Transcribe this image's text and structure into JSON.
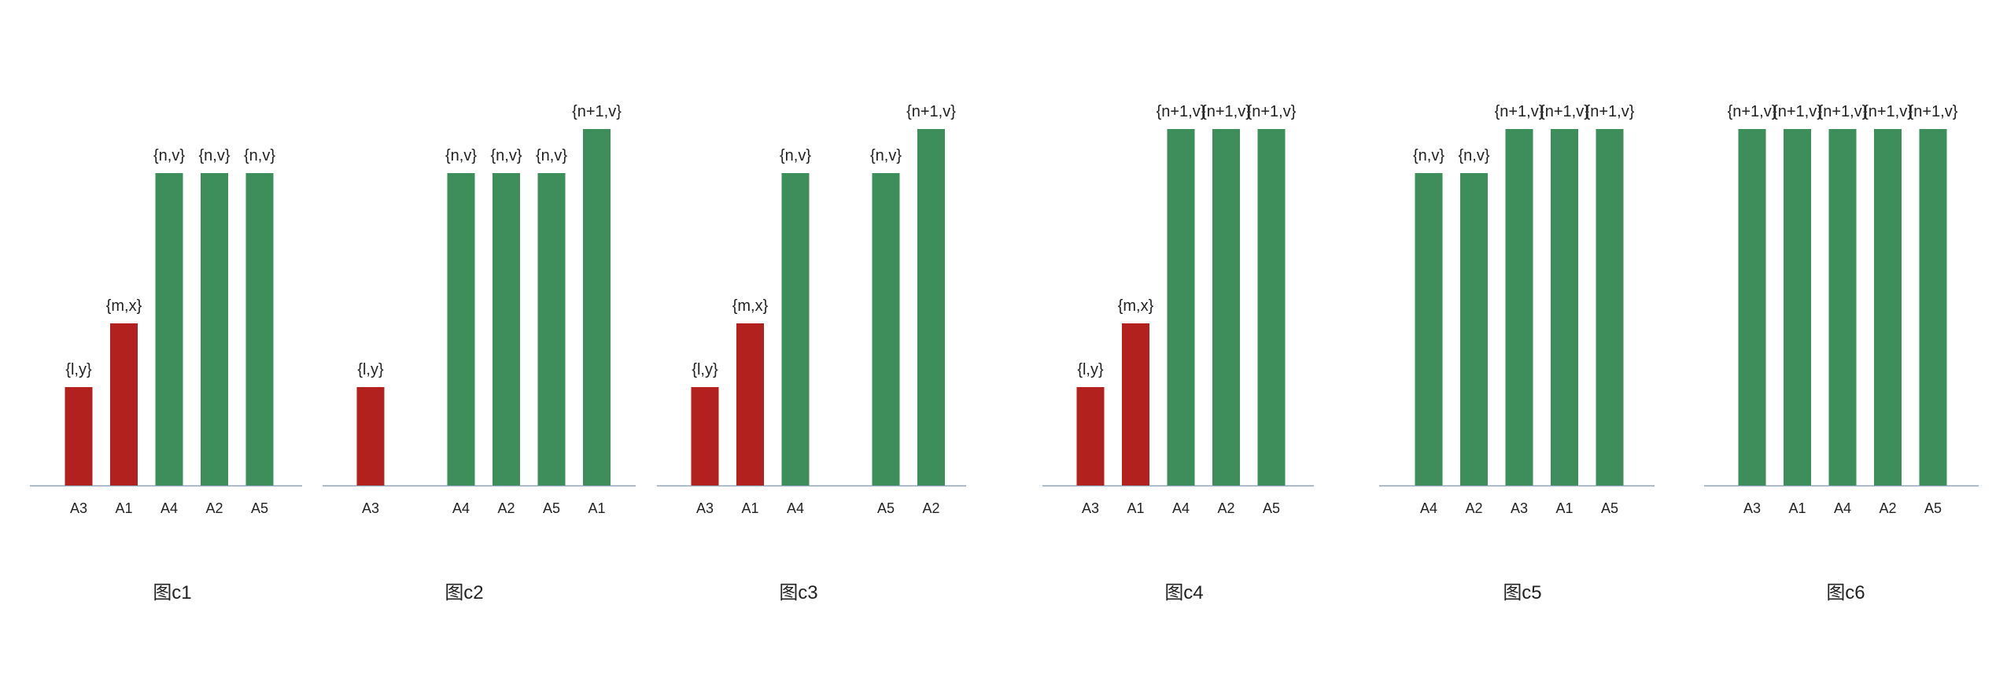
{
  "colors": {
    "red": "#B3211E",
    "green": "#3E8E5B",
    "axis": "#8EA3B5"
  },
  "panels": [
    {
      "caption": "图c1",
      "bars": [
        {
          "cat": "A3",
          "label": "{l,y}",
          "level": "l",
          "color": "red"
        },
        {
          "cat": "A1",
          "label": "{m,x}",
          "level": "m",
          "color": "red"
        },
        {
          "cat": "A4",
          "label": "{n,v}",
          "level": "n",
          "color": "green"
        },
        {
          "cat": "A2",
          "label": "{n,v}",
          "level": "n",
          "color": "green"
        },
        {
          "cat": "A5",
          "label": "{n,v}",
          "level": "n",
          "color": "green"
        }
      ]
    },
    {
      "caption": "图c2",
      "bars": [
        {
          "cat": "A3",
          "label": "{l,y}",
          "level": "l",
          "color": "red"
        },
        {
          "cat": "",
          "label": "",
          "level": "none",
          "color": "none"
        },
        {
          "cat": "A4",
          "label": "{n,v}",
          "level": "n",
          "color": "green"
        },
        {
          "cat": "A2",
          "label": "{n,v}",
          "level": "n",
          "color": "green"
        },
        {
          "cat": "A5",
          "label": "{n,v}",
          "level": "n",
          "color": "green"
        },
        {
          "cat": "A1",
          "label": "{n+1,v}",
          "level": "n1",
          "color": "green"
        }
      ]
    },
    {
      "caption": "图c3",
      "bars": [
        {
          "cat": "A3",
          "label": "{l,y}",
          "level": "l",
          "color": "red"
        },
        {
          "cat": "A1",
          "label": "{m,x}",
          "level": "m",
          "color": "red"
        },
        {
          "cat": "A4",
          "label": "{n,v}",
          "level": "n",
          "color": "green"
        },
        {
          "cat": "",
          "label": "",
          "level": "none",
          "color": "none"
        },
        {
          "cat": "A5",
          "label": "{n,v}",
          "level": "n",
          "color": "green"
        },
        {
          "cat": "A2",
          "label": "{n+1,v}",
          "level": "n1",
          "color": "green"
        }
      ]
    },
    {
      "caption": "图c4",
      "bars": [
        {
          "cat": "A3",
          "label": "{l,y}",
          "level": "l",
          "color": "red"
        },
        {
          "cat": "A1",
          "label": "{m,x}",
          "level": "m",
          "color": "red"
        },
        {
          "cat": "A4",
          "label": "{n+1,v}",
          "level": "n1",
          "color": "green"
        },
        {
          "cat": "A2",
          "label": "{n+1,v}",
          "level": "n1",
          "color": "green"
        },
        {
          "cat": "A5",
          "label": "{n+1,v}",
          "level": "n1",
          "color": "green"
        }
      ]
    },
    {
      "caption": "图c5",
      "bars": [
        {
          "cat": "A4",
          "label": "{n,v}",
          "level": "n",
          "color": "green"
        },
        {
          "cat": "A2",
          "label": "{n,v}",
          "level": "n",
          "color": "green"
        },
        {
          "cat": "A3",
          "label": "{n+1,v}",
          "level": "n1",
          "color": "green"
        },
        {
          "cat": "A1",
          "label": "{n+1,v}",
          "level": "n1",
          "color": "green"
        },
        {
          "cat": "A5",
          "label": "{n+1,v}",
          "level": "n1",
          "color": "green"
        }
      ]
    },
    {
      "caption": "图c6",
      "bars": [
        {
          "cat": "A3",
          "label": "{n+1,v}",
          "level": "n1",
          "color": "green"
        },
        {
          "cat": "A1",
          "label": "{n+1,v}",
          "level": "n1",
          "color": "green"
        },
        {
          "cat": "A4",
          "label": "{n+1,v}",
          "level": "n1",
          "color": "green"
        },
        {
          "cat": "A2",
          "label": "{n+1,v}",
          "level": "n1",
          "color": "green"
        },
        {
          "cat": "A5",
          "label": "{n+1,v}",
          "level": "n1",
          "color": "green"
        }
      ]
    }
  ]
}
